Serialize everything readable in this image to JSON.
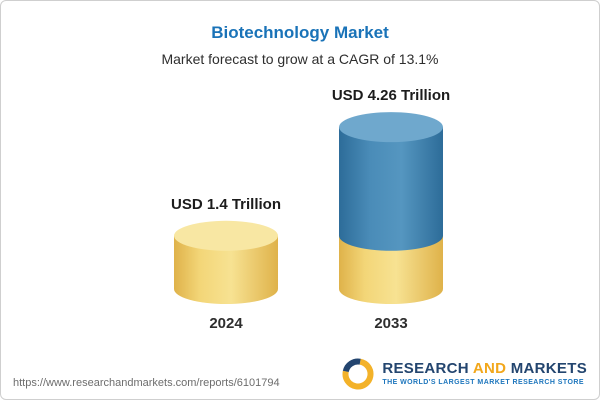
{
  "header": {
    "title": "Biotechnology Market",
    "subtitle": "Market forecast to grow at a CAGR of 13.1%"
  },
  "chart_data": {
    "type": "bar",
    "title": "Biotechnology Market",
    "subtitle": "Market forecast to grow at a CAGR of 13.1%",
    "unit": "USD Trillion",
    "cagr": "13.1%",
    "categories": [
      "2024",
      "2033"
    ],
    "values": [
      1.4,
      4.26
    ],
    "bars": [
      {
        "category": "2024",
        "value": 1.4,
        "label": "USD 1.4 Trillion",
        "segments": [
          {
            "value": 1.4,
            "color": "base"
          }
        ]
      },
      {
        "category": "2033",
        "value": 4.26,
        "label": "USD 4.26 Trillion",
        "segments": [
          {
            "value": 1.4,
            "color": "base"
          },
          {
            "value": 2.86,
            "color": "growth"
          }
        ]
      }
    ],
    "colors": {
      "base": "#f0cd66",
      "base_top": "#f8e7a3",
      "growth": "#3c7fae",
      "growth_top": "#6fa8cd",
      "title_accent": "#1a73b8"
    },
    "ylim": [
      0,
      4.5
    ],
    "grid": false,
    "legend": false,
    "style": "3d-cylinder"
  },
  "footer": {
    "url": "https://www.researchandmarkets.com/reports/6101794",
    "brand": {
      "word1": "RESEARCH",
      "word2": "AND",
      "word3": "MARKETS",
      "tagline": "THE WORLD'S LARGEST MARKET RESEARCH STORE"
    }
  },
  "icons": {
    "brand_logo": "research-and-markets-circular-swirl"
  }
}
